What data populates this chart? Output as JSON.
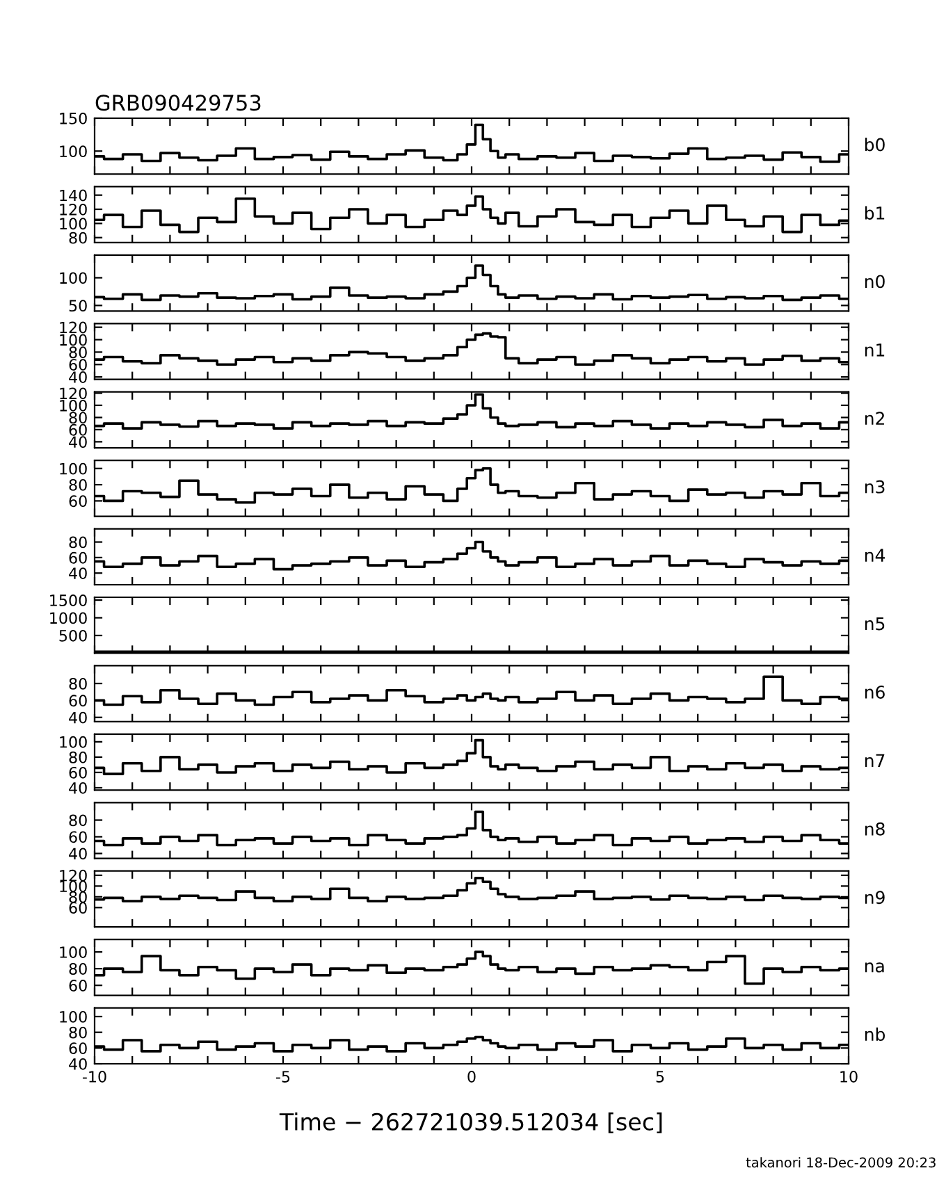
{
  "chart_data": [
    {
      "type": "step",
      "title": "GRB090429753",
      "annotations": [
        "b0"
      ],
      "color": "#000000",
      "tick_labels": "y",
      "xlim": [
        -10,
        10
      ],
      "ylim": [
        65,
        150
      ],
      "yticks": [
        100,
        150
      ],
      "x": [
        -10,
        -9.5,
        -9,
        -8.5,
        -8,
        -7.5,
        -7,
        -6.5,
        -6,
        -5.5,
        -5,
        -4.5,
        -4,
        -3.5,
        -3,
        -2.5,
        -2,
        -1.5,
        -1,
        -0.5,
        -0.25,
        0,
        0.2,
        0.4,
        0.6,
        0.8,
        1,
        1.5,
        2,
        2.5,
        3,
        3.5,
        4,
        4.5,
        5,
        5.5,
        6,
        6.5,
        7,
        7.5,
        8,
        8.5,
        9,
        9.5,
        10
      ],
      "values": [
        92,
        88,
        95,
        85,
        97,
        90,
        86,
        93,
        104,
        88,
        91,
        94,
        87,
        99,
        92,
        88,
        95,
        101,
        90,
        86,
        95,
        110,
        140,
        118,
        100,
        90,
        95,
        88,
        92,
        90,
        97,
        85,
        93,
        91,
        89,
        96,
        104,
        88,
        90,
        93,
        87,
        98,
        91,
        84,
        95
      ]
    },
    {
      "type": "step",
      "annotations": [
        "b1"
      ],
      "color": "#000000",
      "tick_labels": "y",
      "xlim": [
        -10,
        10
      ],
      "ylim": [
        73,
        152
      ],
      "yticks": [
        80,
        100,
        120,
        140
      ],
      "x": [
        -10,
        -9.5,
        -9,
        -8.5,
        -8,
        -7.5,
        -7,
        -6.5,
        -6,
        -5.5,
        -5,
        -4.5,
        -4,
        -3.5,
        -3,
        -2.5,
        -2,
        -1.5,
        -1,
        -0.5,
        -0.25,
        0,
        0.2,
        0.4,
        0.6,
        0.8,
        1,
        1.5,
        2,
        2.5,
        3,
        3.5,
        4,
        4.5,
        5,
        5.5,
        6,
        6.5,
        7,
        7.5,
        8,
        8.5,
        9,
        9.5,
        10
      ],
      "values": [
        105,
        112,
        95,
        118,
        98,
        88,
        108,
        102,
        135,
        110,
        100,
        115,
        92,
        108,
        120,
        100,
        112,
        95,
        105,
        118,
        112,
        125,
        138,
        120,
        108,
        100,
        115,
        96,
        110,
        120,
        102,
        98,
        112,
        95,
        108,
        118,
        100,
        125,
        105,
        96,
        110,
        88,
        112,
        98,
        104
      ]
    },
    {
      "type": "step",
      "annotations": [
        "n0"
      ],
      "color": "#000000",
      "tick_labels": "y",
      "xlim": [
        -10,
        10
      ],
      "ylim": [
        40,
        141
      ],
      "yticks": [
        50,
        100
      ],
      "x": [
        -10,
        -9.5,
        -9,
        -8.5,
        -8,
        -7.5,
        -7,
        -6.5,
        -6,
        -5.5,
        -5,
        -4.5,
        -4,
        -3.5,
        -3,
        -2.5,
        -2,
        -1.5,
        -1,
        -0.5,
        -0.25,
        0,
        0.2,
        0.4,
        0.6,
        0.8,
        1,
        1.5,
        2,
        2.5,
        3,
        3.5,
        4,
        4.5,
        5,
        5.5,
        6,
        6.5,
        7,
        7.5,
        8,
        8.5,
        9,
        9.5,
        10
      ],
      "values": [
        65,
        62,
        70,
        60,
        68,
        66,
        72,
        64,
        63,
        67,
        70,
        61,
        66,
        82,
        68,
        64,
        66,
        63,
        70,
        75,
        85,
        100,
        122,
        105,
        85,
        70,
        64,
        68,
        62,
        66,
        63,
        70,
        61,
        67,
        64,
        66,
        69,
        62,
        65,
        63,
        67,
        60,
        64,
        68,
        62
      ]
    },
    {
      "type": "step",
      "annotations": [
        "n1"
      ],
      "color": "#000000",
      "tick_labels": "y",
      "xlim": [
        -10,
        10
      ],
      "ylim": [
        36,
        126
      ],
      "yticks": [
        40,
        60,
        80,
        100,
        120
      ],
      "x": [
        -10,
        -9.5,
        -9,
        -8.5,
        -8,
        -7.5,
        -7,
        -6.5,
        -6,
        -5.5,
        -5,
        -4.5,
        -4,
        -3.5,
        -3,
        -2.5,
        -2,
        -1.5,
        -1,
        -0.5,
        -0.25,
        0,
        0.2,
        0.4,
        0.6,
        0.8,
        1,
        1.5,
        2,
        2.5,
        3,
        3.5,
        4,
        4.5,
        5,
        5.5,
        6,
        6.5,
        7,
        7.5,
        8,
        8.5,
        9,
        9.5,
        10
      ],
      "values": [
        68,
        72,
        65,
        62,
        75,
        70,
        66,
        60,
        68,
        72,
        64,
        70,
        66,
        75,
        80,
        78,
        72,
        66,
        70,
        75,
        88,
        100,
        108,
        110,
        105,
        104,
        70,
        62,
        68,
        72,
        60,
        66,
        75,
        70,
        62,
        68,
        72,
        65,
        70,
        60,
        68,
        74,
        66,
        70,
        64
      ]
    },
    {
      "type": "step",
      "annotations": [
        "n2"
      ],
      "color": "#000000",
      "tick_labels": "y",
      "xlim": [
        -10,
        10
      ],
      "ylim": [
        30,
        122
      ],
      "yticks": [
        40,
        60,
        80,
        100,
        120
      ],
      "x": [
        -10,
        -9.5,
        -9,
        -8.5,
        -8,
        -7.5,
        -7,
        -6.5,
        -6,
        -5.5,
        -5,
        -4.5,
        -4,
        -3.5,
        -3,
        -2.5,
        -2,
        -1.5,
        -1,
        -0.5,
        -0.25,
        0,
        0.2,
        0.4,
        0.6,
        0.8,
        1,
        1.5,
        2,
        2.5,
        3,
        3.5,
        4,
        4.5,
        5,
        5.5,
        6,
        6.5,
        7,
        7.5,
        8,
        8.5,
        9,
        9.5,
        10
      ],
      "values": [
        66,
        70,
        62,
        72,
        68,
        65,
        74,
        66,
        70,
        68,
        62,
        72,
        66,
        70,
        68,
        74,
        66,
        72,
        70,
        78,
        85,
        100,
        118,
        95,
        80,
        70,
        66,
        68,
        72,
        64,
        70,
        66,
        74,
        68,
        62,
        70,
        66,
        72,
        68,
        64,
        76,
        66,
        70,
        62,
        72
      ]
    },
    {
      "type": "step",
      "annotations": [
        "n3"
      ],
      "color": "#000000",
      "tick_labels": "y",
      "xlim": [
        -10,
        10
      ],
      "ylim": [
        41,
        110
      ],
      "yticks": [
        60,
        80,
        100
      ],
      "x": [
        -10,
        -9.5,
        -9,
        -8.5,
        -8,
        -7.5,
        -7,
        -6.5,
        -6,
        -5.5,
        -5,
        -4.5,
        -4,
        -3.5,
        -3,
        -2.5,
        -2,
        -1.5,
        -1,
        -0.5,
        -0.25,
        0,
        0.2,
        0.4,
        0.6,
        0.8,
        1,
        1.5,
        2,
        2.5,
        3,
        3.5,
        4,
        4.5,
        5,
        5.5,
        6,
        6.5,
        7,
        7.5,
        8,
        8.5,
        9,
        9.5,
        10
      ],
      "values": [
        66,
        60,
        72,
        70,
        65,
        85,
        68,
        62,
        58,
        70,
        68,
        75,
        66,
        80,
        64,
        70,
        62,
        78,
        68,
        60,
        75,
        88,
        98,
        100,
        80,
        70,
        72,
        66,
        64,
        70,
        82,
        62,
        68,
        72,
        66,
        60,
        74,
        68,
        70,
        64,
        72,
        68,
        82,
        66,
        70
      ]
    },
    {
      "type": "step",
      "annotations": [
        "n4"
      ],
      "color": "#000000",
      "tick_labels": "y",
      "xlim": [
        -10,
        10
      ],
      "ylim": [
        25,
        97
      ],
      "yticks": [
        40,
        60,
        80
      ],
      "x": [
        -10,
        -9.5,
        -9,
        -8.5,
        -8,
        -7.5,
        -7,
        -6.5,
        -6,
        -5.5,
        -5,
        -4.5,
        -4,
        -3.5,
        -3,
        -2.5,
        -2,
        -1.5,
        -1,
        -0.5,
        -0.25,
        0,
        0.2,
        0.4,
        0.6,
        0.8,
        1,
        1.5,
        2,
        2.5,
        3,
        3.5,
        4,
        4.5,
        5,
        5.5,
        6,
        6.5,
        7,
        7.5,
        8,
        8.5,
        9,
        9.5,
        10
      ],
      "values": [
        55,
        48,
        52,
        60,
        50,
        55,
        62,
        48,
        52,
        58,
        45,
        50,
        52,
        55,
        60,
        50,
        56,
        48,
        54,
        58,
        65,
        72,
        80,
        68,
        60,
        55,
        50,
        54,
        60,
        48,
        52,
        58,
        50,
        55,
        62,
        50,
        56,
        52,
        48,
        58,
        54,
        50,
        55,
        52,
        56
      ]
    },
    {
      "type": "step",
      "annotations": [
        "n5"
      ],
      "color": "#000000",
      "tick_labels": "y",
      "xlim": [
        -10,
        10
      ],
      "ylim": [
        0,
        1580
      ],
      "yticks": [
        500,
        1000,
        1500
      ],
      "x": [
        -10,
        -9.5,
        -9,
        -8.5,
        -8,
        -7.5,
        -7,
        -6.5,
        -6,
        -5.5,
        -5,
        -4.5,
        -4,
        -3.5,
        -3,
        -2.5,
        -2,
        -1.5,
        -1,
        -0.5,
        -0.25,
        0,
        0.2,
        0.4,
        0.6,
        0.8,
        1,
        1.5,
        2,
        2.5,
        3,
        3.5,
        4,
        4.5,
        5,
        5.5,
        6,
        6.5,
        7,
        7.5,
        8,
        8.5,
        9,
        9.5,
        10
      ],
      "values": [
        40,
        40,
        40,
        40,
        40,
        40,
        40,
        40,
        40,
        40,
        40,
        40,
        40,
        40,
        40,
        40,
        40,
        40,
        40,
        40,
        40,
        40,
        40,
        40,
        40,
        40,
        40,
        40,
        40,
        40,
        40,
        40,
        40,
        40,
        40,
        40,
        40,
        40,
        40,
        40,
        40,
        40,
        40,
        40,
        40
      ]
    },
    {
      "type": "step",
      "annotations": [
        "n6"
      ],
      "color": "#000000",
      "tick_labels": "y",
      "xlim": [
        -10,
        10
      ],
      "ylim": [
        35,
        101
      ],
      "yticks": [
        40,
        60,
        80
      ],
      "x": [
        -10,
        -9.5,
        -9,
        -8.5,
        -8,
        -7.5,
        -7,
        -6.5,
        -6,
        -5.5,
        -5,
        -4.5,
        -4,
        -3.5,
        -3,
        -2.5,
        -2,
        -1.5,
        -1,
        -0.5,
        -0.25,
        0,
        0.2,
        0.4,
        0.6,
        0.8,
        1,
        1.5,
        2,
        2.5,
        3,
        3.5,
        4,
        4.5,
        5,
        5.5,
        6,
        6.5,
        7,
        7.5,
        8,
        8.5,
        9,
        9.5,
        10
      ],
      "values": [
        60,
        55,
        65,
        58,
        72,
        62,
        56,
        68,
        60,
        55,
        64,
        70,
        58,
        62,
        66,
        60,
        72,
        65,
        58,
        62,
        66,
        60,
        64,
        68,
        62,
        60,
        64,
        58,
        62,
        70,
        60,
        66,
        56,
        62,
        68,
        60,
        64,
        62,
        58,
        62,
        88,
        60,
        56,
        64,
        62
      ]
    },
    {
      "type": "step",
      "annotations": [
        "n7"
      ],
      "color": "#000000",
      "tick_labels": "y",
      "xlim": [
        -10,
        10
      ],
      "ylim": [
        37,
        110
      ],
      "yticks": [
        40,
        60,
        80,
        100
      ],
      "x": [
        -10,
        -9.5,
        -9,
        -8.5,
        -8,
        -7.5,
        -7,
        -6.5,
        -6,
        -5.5,
        -5,
        -4.5,
        -4,
        -3.5,
        -3,
        -2.5,
        -2,
        -1.5,
        -1,
        -0.5,
        -0.25,
        0,
        0.2,
        0.4,
        0.6,
        0.8,
        1,
        1.5,
        2,
        2.5,
        3,
        3.5,
        4,
        4.5,
        5,
        5.5,
        6,
        6.5,
        7,
        7.5,
        8,
        8.5,
        9,
        9.5,
        10
      ],
      "values": [
        66,
        58,
        72,
        62,
        80,
        64,
        70,
        60,
        68,
        72,
        62,
        70,
        66,
        74,
        64,
        68,
        60,
        72,
        66,
        70,
        75,
        85,
        102,
        80,
        68,
        64,
        70,
        66,
        62,
        68,
        74,
        64,
        70,
        66,
        80,
        62,
        68,
        64,
        72,
        66,
        70,
        62,
        68,
        64,
        66
      ]
    },
    {
      "type": "step",
      "annotations": [
        "n8"
      ],
      "color": "#000000",
      "tick_labels": "y",
      "xlim": [
        -10,
        10
      ],
      "ylim": [
        34,
        101
      ],
      "yticks": [
        40,
        60,
        80
      ],
      "x": [
        -10,
        -9.5,
        -9,
        -8.5,
        -8,
        -7.5,
        -7,
        -6.5,
        -6,
        -5.5,
        -5,
        -4.5,
        -4,
        -3.5,
        -3,
        -2.5,
        -2,
        -1.5,
        -1,
        -0.5,
        -0.25,
        0,
        0.2,
        0.4,
        0.6,
        0.8,
        1,
        1.5,
        2,
        2.5,
        3,
        3.5,
        4,
        4.5,
        5,
        5.5,
        6,
        6.5,
        7,
        7.5,
        8,
        8.5,
        9,
        9.5,
        10
      ],
      "values": [
        55,
        50,
        58,
        52,
        60,
        55,
        62,
        50,
        56,
        58,
        52,
        60,
        55,
        58,
        50,
        62,
        56,
        52,
        58,
        60,
        62,
        70,
        90,
        68,
        60,
        56,
        58,
        54,
        60,
        52,
        56,
        62,
        50,
        58,
        55,
        60,
        52,
        56,
        58,
        54,
        60,
        55,
        62,
        56,
        52
      ]
    },
    {
      "type": "step",
      "annotations": [
        "n9"
      ],
      "color": "#000000",
      "tick_labels": "y",
      "xlim": [
        -10,
        10
      ],
      "ylim": [
        24,
        128
      ],
      "yticks": [
        60,
        80,
        100,
        120
      ],
      "x": [
        -10,
        -9.5,
        -9,
        -8.5,
        -8,
        -7.5,
        -7,
        -6.5,
        -6,
        -5.5,
        -5,
        -4.5,
        -4,
        -3.5,
        -3,
        -2.5,
        -2,
        -1.5,
        -1,
        -0.5,
        -0.25,
        0,
        0.2,
        0.4,
        0.6,
        0.8,
        1,
        1.5,
        2,
        2.5,
        3,
        3.5,
        4,
        4.5,
        5,
        5.5,
        6,
        6.5,
        7,
        7.5,
        8,
        8.5,
        9,
        9.5,
        10
      ],
      "values": [
        75,
        78,
        72,
        80,
        76,
        82,
        78,
        74,
        90,
        78,
        72,
        80,
        76,
        95,
        78,
        72,
        80,
        76,
        78,
        82,
        92,
        105,
        115,
        108,
        95,
        85,
        80,
        76,
        78,
        82,
        90,
        76,
        78,
        80,
        75,
        82,
        78,
        76,
        80,
        74,
        82,
        78,
        76,
        80,
        78
      ]
    },
    {
      "type": "step",
      "annotations": [
        "na"
      ],
      "color": "#000000",
      "tick_labels": "y",
      "xlim": [
        -10,
        10
      ],
      "ylim": [
        48,
        115
      ],
      "yticks": [
        60,
        80,
        100
      ],
      "x": [
        -10,
        -9.5,
        -9,
        -8.5,
        -8,
        -7.5,
        -7,
        -6.5,
        -6,
        -5.5,
        -5,
        -4.5,
        -4,
        -3.5,
        -3,
        -2.5,
        -2,
        -1.5,
        -1,
        -0.5,
        -0.25,
        0,
        0.2,
        0.4,
        0.6,
        0.8,
        1,
        1.5,
        2,
        2.5,
        3,
        3.5,
        4,
        4.5,
        5,
        5.5,
        6,
        6.5,
        7,
        7.5,
        8,
        8.5,
        9,
        9.5,
        10
      ],
      "values": [
        72,
        80,
        76,
        95,
        78,
        72,
        82,
        78,
        68,
        80,
        76,
        85,
        72,
        80,
        78,
        84,
        75,
        80,
        78,
        82,
        85,
        92,
        100,
        95,
        85,
        80,
        78,
        82,
        76,
        80,
        74,
        82,
        78,
        80,
        84,
        82,
        78,
        88,
        95,
        62,
        80,
        76,
        82,
        78,
        80
      ]
    },
    {
      "type": "step",
      "annotations": [
        "nb",
        "takanori 18-Dec-2009 20:23"
      ],
      "color": "#000000",
      "xlabel": "Time − 262721039.512034 [sec]",
      "xlim": [
        -10,
        10
      ],
      "ylim": [
        40,
        111
      ],
      "yticks": [
        40,
        60,
        80,
        100
      ],
      "xticks": [
        -10,
        {
          "value": -9,
          "label": null
        },
        {
          "value": -8,
          "label": null
        },
        {
          "value": -7,
          "label": null
        },
        {
          "value": -6,
          "label": null
        },
        -5,
        {
          "value": -4,
          "label": null
        },
        {
          "value": -3,
          "label": null
        },
        {
          "value": -2,
          "label": null
        },
        {
          "value": -1,
          "label": null
        },
        0,
        {
          "value": 1,
          "label": null
        },
        {
          "value": 2,
          "label": null
        },
        {
          "value": 3,
          "label": null
        },
        {
          "value": 4,
          "label": null
        },
        5,
        {
          "value": 6,
          "label": null
        },
        {
          "value": 7,
          "label": null
        },
        {
          "value": 8,
          "label": null
        },
        {
          "value": 9,
          "label": null
        },
        10
      ],
      "x": [
        -10,
        -9.5,
        -9,
        -8.5,
        -8,
        -7.5,
        -7,
        -6.5,
        -6,
        -5.5,
        -5,
        -4.5,
        -4,
        -3.5,
        -3,
        -2.5,
        -2,
        -1.5,
        -1,
        -0.5,
        -0.25,
        0,
        0.2,
        0.4,
        0.6,
        0.8,
        1,
        1.5,
        2,
        2.5,
        3,
        3.5,
        4,
        4.5,
        5,
        5.5,
        6,
        6.5,
        7,
        7.5,
        8,
        8.5,
        9,
        9.5,
        10
      ],
      "values": [
        62,
        58,
        70,
        56,
        64,
        60,
        68,
        58,
        62,
        66,
        56,
        64,
        60,
        70,
        58,
        62,
        56,
        66,
        60,
        64,
        68,
        72,
        74,
        70,
        66,
        62,
        60,
        64,
        58,
        66,
        62,
        70,
        56,
        64,
        60,
        66,
        58,
        62,
        72,
        60,
        64,
        58,
        66,
        60,
        64
      ]
    }
  ]
}
